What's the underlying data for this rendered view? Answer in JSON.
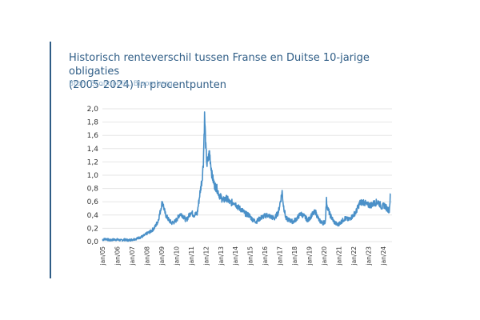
{
  "header": {
    "title_line1": "Historisch renteverschil tussen Franse en Duitse 10-jarige obligaties",
    "title_line2": "(2005-2024) in procentpunten",
    "source": "Bron: Econopolis, Bloomberg"
  },
  "colors": {
    "accent": "#2f5d86",
    "line": "#4a90c8",
    "source": "#8fb0cc",
    "grid": "#e6e6e6"
  },
  "chart_data": {
    "type": "line",
    "title": "Historisch renteverschil tussen Franse en Duitse 10-jarige obligaties (2005-2024) in procentpunten",
    "xlabel": "",
    "ylabel": "",
    "ylim": [
      0,
      2.0
    ],
    "yticks": [
      "0,0",
      "0,2",
      "0,4",
      "0,6",
      "0,8",
      "1,0",
      "1,2",
      "1,4",
      "1,6",
      "1,8",
      "2,0"
    ],
    "xticks": [
      "jan/05",
      "jan/06",
      "jan/07",
      "jan/08",
      "jan/09",
      "jan/10",
      "jan/11",
      "jan/12",
      "jan/13",
      "jan/14",
      "jan/15",
      "jan/16",
      "jan/17",
      "jan/18",
      "jan/19",
      "jan/20",
      "jan/21",
      "jan/22",
      "jan/23",
      "jan/24"
    ],
    "grid": "horizontal",
    "legend": "none",
    "series": [
      {
        "x": [
          "2005-01",
          "2005-04",
          "2005-07",
          "2005-10",
          "2006-01",
          "2006-04",
          "2006-07",
          "2006-10",
          "2007-01",
          "2007-04",
          "2007-07",
          "2007-10",
          "2008-01",
          "2008-04",
          "2008-07",
          "2008-10",
          "2008-12",
          "2009-01",
          "2009-02",
          "2009-03",
          "2009-04",
          "2009-06",
          "2009-09",
          "2009-12",
          "2010-02",
          "2010-04",
          "2010-06",
          "2010-09",
          "2010-11",
          "2011-01",
          "2011-03",
          "2011-06",
          "2011-08",
          "2011-10",
          "2011-11",
          "2011-12",
          "2012-01",
          "2012-02",
          "2012-04",
          "2012-06",
          "2012-08",
          "2012-10",
          "2012-12",
          "2013-03",
          "2013-06",
          "2013-09",
          "2013-12",
          "2014-03",
          "2014-06",
          "2014-09",
          "2014-12",
          "2015-03",
          "2015-06",
          "2015-09",
          "2015-12",
          "2016-03",
          "2016-06",
          "2016-09",
          "2016-12",
          "2017-02",
          "2017-03",
          "2017-04",
          "2017-06",
          "2017-09",
          "2017-12",
          "2018-03",
          "2018-06",
          "2018-09",
          "2018-12",
          "2019-03",
          "2019-06",
          "2019-09",
          "2019-12",
          "2020-02",
          "2020-03",
          "2020-04",
          "2020-06",
          "2020-09",
          "2020-12",
          "2021-03",
          "2021-06",
          "2021-09",
          "2021-12",
          "2022-03",
          "2022-06",
          "2022-09",
          "2022-12",
          "2023-03",
          "2023-06",
          "2023-09",
          "2023-12",
          "2024-02",
          "2024-04",
          "2024-06",
          "2024-07"
        ],
        "values": [
          0.03,
          0.04,
          0.02,
          0.03,
          0.03,
          0.02,
          0.03,
          0.02,
          0.03,
          0.04,
          0.06,
          0.08,
          0.12,
          0.15,
          0.2,
          0.3,
          0.45,
          0.55,
          0.6,
          0.5,
          0.42,
          0.35,
          0.28,
          0.3,
          0.35,
          0.42,
          0.4,
          0.32,
          0.38,
          0.45,
          0.4,
          0.42,
          0.7,
          0.95,
          1.2,
          1.88,
          1.4,
          1.15,
          1.35,
          1.0,
          0.85,
          0.8,
          0.7,
          0.62,
          0.65,
          0.58,
          0.6,
          0.52,
          0.48,
          0.42,
          0.4,
          0.33,
          0.3,
          0.35,
          0.38,
          0.4,
          0.37,
          0.35,
          0.45,
          0.65,
          0.75,
          0.55,
          0.35,
          0.32,
          0.3,
          0.35,
          0.42,
          0.38,
          0.32,
          0.4,
          0.45,
          0.32,
          0.28,
          0.3,
          0.62,
          0.5,
          0.4,
          0.3,
          0.25,
          0.3,
          0.35,
          0.33,
          0.38,
          0.45,
          0.58,
          0.6,
          0.55,
          0.55,
          0.58,
          0.6,
          0.52,
          0.55,
          0.5,
          0.47,
          0.72
        ]
      }
    ]
  }
}
